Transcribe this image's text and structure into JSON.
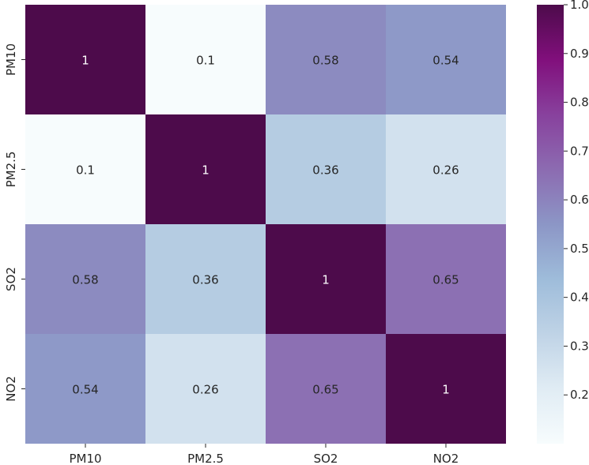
{
  "chart_data": {
    "type": "heatmap",
    "row_labels": [
      "PM10",
      "PM2.5",
      "SO2",
      "NO2"
    ],
    "col_labels": [
      "PM10",
      "PM2.5",
      "SO2",
      "NO2"
    ],
    "values": [
      [
        1,
        0.1,
        0.58,
        0.54
      ],
      [
        0.1,
        1,
        0.36,
        0.26
      ],
      [
        0.58,
        0.36,
        1,
        0.65
      ],
      [
        0.54,
        0.26,
        0.65,
        1
      ]
    ],
    "cell_labels": [
      [
        "1",
        "0.1",
        "0.58",
        "0.54"
      ],
      [
        "0.1",
        "1",
        "0.36",
        "0.26"
      ],
      [
        "0.58",
        "0.36",
        "1",
        "0.65"
      ],
      [
        "0.54",
        "0.26",
        "0.65",
        "1"
      ]
    ],
    "colorbar": {
      "range": [
        0.1,
        1.0
      ],
      "ticks": [
        0.2,
        0.3,
        0.4,
        0.5,
        0.6,
        0.7,
        0.8,
        0.9,
        1.0
      ],
      "tick_labels": [
        "0.2",
        "0.3",
        "0.4",
        "0.5",
        "0.6",
        "0.7",
        "0.8",
        "0.9",
        "1.0"
      ],
      "colormap": "BuPu",
      "colormap_stops": [
        "#f7fcfd",
        "#e0ecf4",
        "#bfd3e6",
        "#9ebcda",
        "#8c96c6",
        "#8c6bb1",
        "#88419d",
        "#810f7c",
        "#4d0b4b"
      ]
    },
    "title": "",
    "xlabel": "",
    "ylabel": "",
    "grid": false
  }
}
